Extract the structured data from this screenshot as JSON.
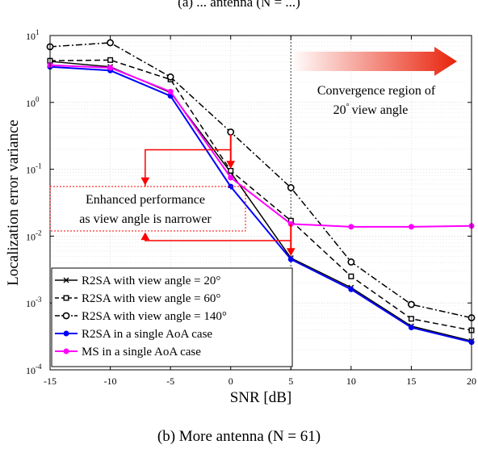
{
  "top_caption": "(a) ... antenna (N = ...)",
  "bottom_caption": "(b) More antenna (N = 61)",
  "chart_data": {
    "type": "line",
    "xlabel": "SNR [dB]",
    "ylabel": "Localization error variance",
    "x": [
      -15,
      -10,
      -5,
      0,
      5,
      10,
      15,
      20
    ],
    "xlim": [
      -15,
      20
    ],
    "ylim": [
      0.0001,
      10
    ],
    "yscale": "log",
    "xticks": [
      "-15",
      "-10",
      "-5",
      "0",
      "5",
      "10",
      "15",
      "20"
    ],
    "yticks": [
      {
        "value": 0.0001,
        "exp": "-4"
      },
      {
        "value": 0.001,
        "exp": "-3"
      },
      {
        "value": 0.01,
        "exp": "-2"
      },
      {
        "value": 0.1,
        "exp": "-1"
      },
      {
        "value": 1,
        "exp": "0"
      },
      {
        "value": 10,
        "exp": "1"
      }
    ],
    "grid": true,
    "legend_position": "bottom-left",
    "series": [
      {
        "name": "R2SA with view angle = 20°",
        "color": "#000000",
        "dash": "solid",
        "marker": "x",
        "values": [
          4.1,
          3.4,
          1.4,
          0.09,
          0.0047,
          0.0017,
          0.00045,
          0.00027
        ]
      },
      {
        "name": "R2SA with view angle = 60°",
        "color": "#000000",
        "dash": "dashed",
        "marker": "square",
        "values": [
          4.2,
          4.3,
          2.2,
          0.095,
          0.017,
          0.0025,
          0.00058,
          0.00039
        ]
      },
      {
        "name": "R2SA with view angle = 140°",
        "color": "#000000",
        "dash": "dashdot",
        "marker": "circle",
        "values": [
          6.8,
          7.8,
          2.4,
          0.36,
          0.053,
          0.0041,
          0.00095,
          0.0006
        ]
      },
      {
        "name": "R2SA in a single AoA case",
        "color": "#0000ff",
        "dash": "solid",
        "marker": "dot",
        "values": [
          3.4,
          3.0,
          1.25,
          0.055,
          0.0045,
          0.0016,
          0.00043,
          0.00026
        ]
      },
      {
        "name": "MS in a single AoA case",
        "color": "#ff00ff",
        "dash": "solid",
        "marker": "dot",
        "values": [
          3.6,
          3.3,
          1.45,
          0.075,
          0.0152,
          0.0138,
          0.0138,
          0.0142
        ]
      }
    ],
    "vline_x": 5,
    "annotations": {
      "convergence_line1": "Convergence region of",
      "convergence_line2_num": "20",
      "convergence_line2_text": "view angle",
      "enhanced_line1": "Enhanced performance",
      "enhanced_line2": "as view angle is narrower"
    },
    "colors": {
      "arrow_red": "#ff0000",
      "gradient_start": "#ffffff",
      "gradient_end": "#e8230c"
    }
  }
}
